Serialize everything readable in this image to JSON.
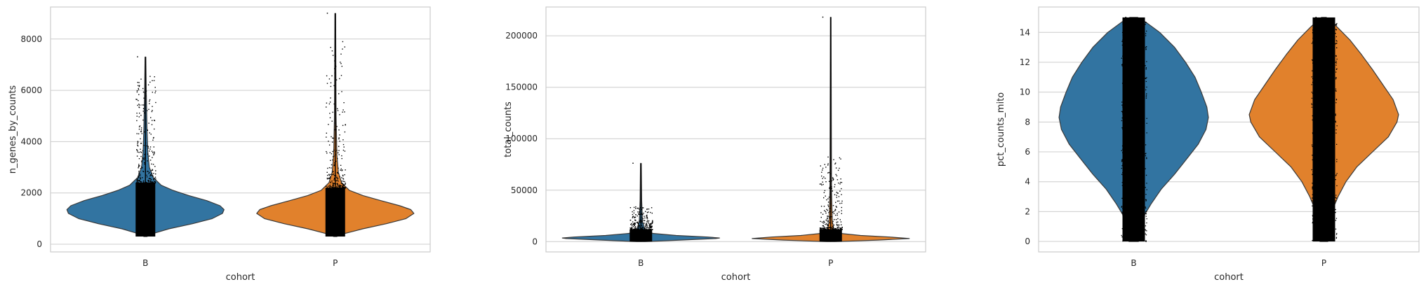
{
  "colors": {
    "B": "#3274a1",
    "P": "#e1812c",
    "points": "#000000",
    "grid": "#cccccc",
    "spine": "#cccccc"
  },
  "chart_data": [
    {
      "type": "violin",
      "xlabel": "cohort",
      "ylabel": "n_genes_by_counts",
      "categories": [
        "B",
        "P"
      ],
      "ylim": [
        -300,
        9250
      ],
      "yticks": [
        0,
        2000,
        4000,
        6000,
        8000
      ],
      "grid": true,
      "series": [
        {
          "category": "B",
          "min": 300,
          "max": 7300,
          "median": 1350,
          "q1": 1000,
          "q3": 1850
        },
        {
          "category": "P",
          "min": 300,
          "max": 9000,
          "median": 1200,
          "q1": 900,
          "q3": 1650
        }
      ]
    },
    {
      "type": "violin",
      "xlabel": "cohort",
      "ylabel": "total_counts",
      "categories": [
        "B",
        "P"
      ],
      "ylim": [
        -10000,
        228000
      ],
      "yticks": [
        0,
        50000,
        100000,
        150000,
        200000
      ],
      "grid": true,
      "series": [
        {
          "category": "B",
          "min": 0,
          "max": 76000,
          "median": 3500,
          "q1": 2000,
          "q3": 6000
        },
        {
          "category": "P",
          "min": 0,
          "max": 218000,
          "median": 3000,
          "q1": 1500,
          "q3": 5500
        }
      ]
    },
    {
      "type": "violin",
      "xlabel": "cohort",
      "ylabel": "pct_counts_mito",
      "categories": [
        "B",
        "P"
      ],
      "ylim": [
        -0.7,
        15.7
      ],
      "yticks": [
        0,
        2,
        4,
        6,
        8,
        10,
        12,
        14
      ],
      "grid": true,
      "series": [
        {
          "category": "B",
          "min": 0,
          "max": 15,
          "median": 8,
          "q1": 5,
          "q3": 11
        },
        {
          "category": "P",
          "min": 0,
          "max": 15,
          "median": 8.5,
          "q1": 6,
          "q3": 11
        }
      ]
    }
  ]
}
